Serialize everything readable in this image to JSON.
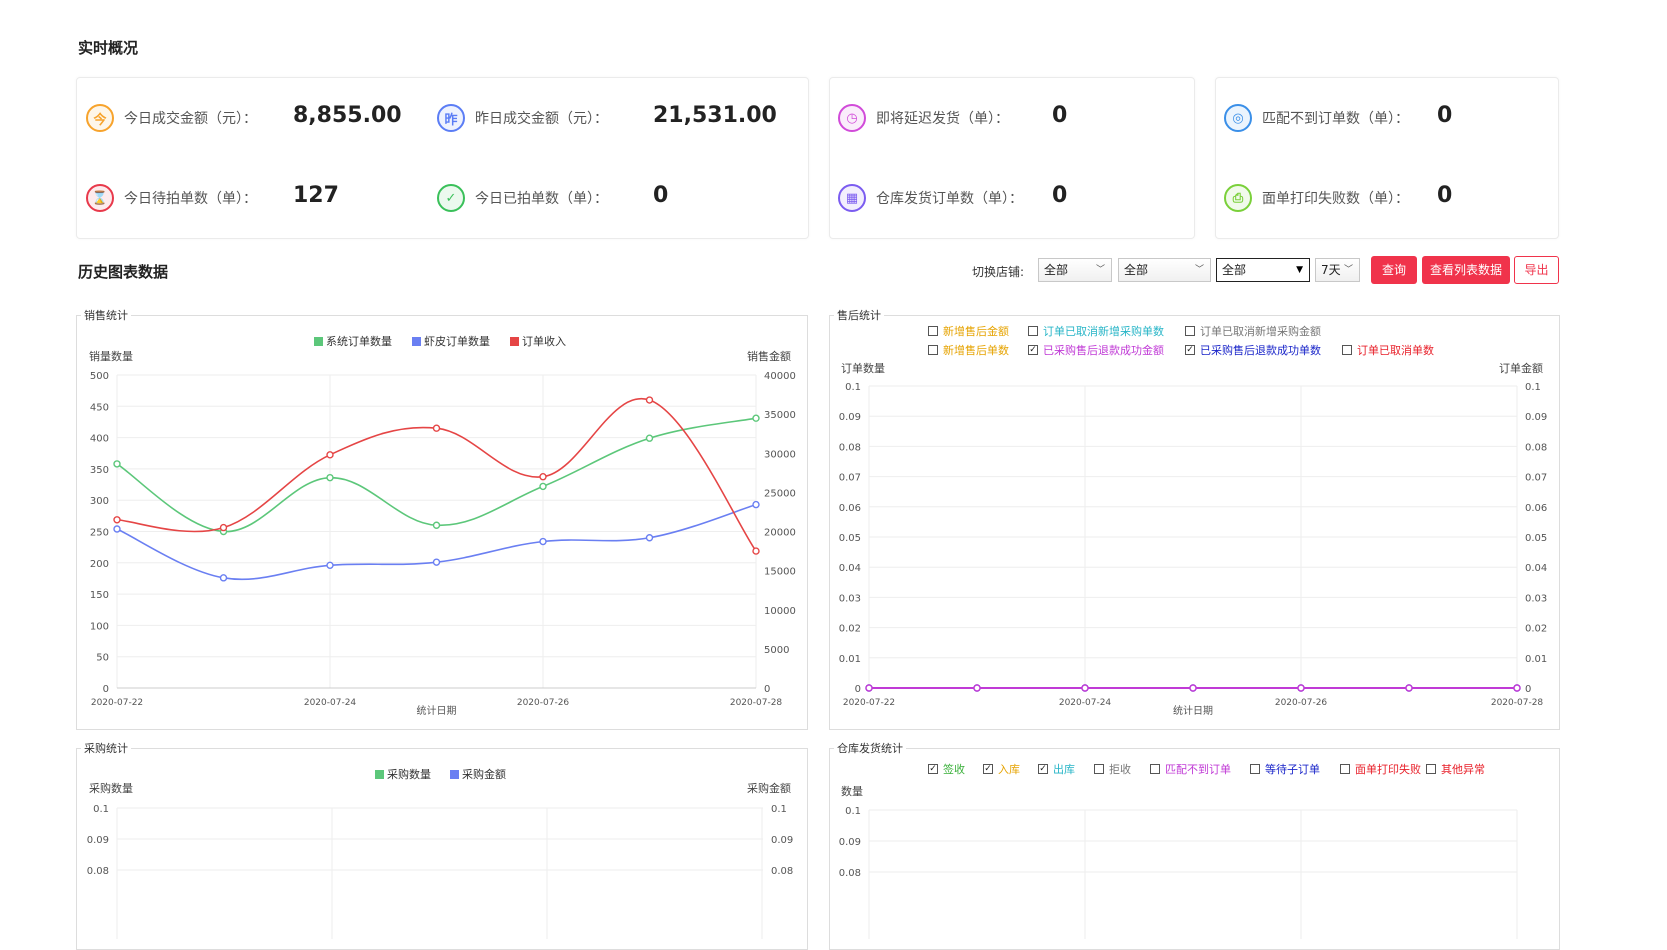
{
  "realtime": {
    "title": "实时概况",
    "stats": [
      {
        "label": "今日成交金额（元）：",
        "value": "8,855.00",
        "icon": "今"
      },
      {
        "label": "昨日成交金额（元）：",
        "value": "21,531.00",
        "icon": "昨"
      },
      {
        "label": "今日待拍单数（单）：",
        "value": "127",
        "icon": "⌛"
      },
      {
        "label": "今日已拍单数（单）：",
        "value": "0",
        "icon": "✓"
      },
      {
        "label": "即将延迟发货（单）：",
        "value": "0",
        "icon": "◷"
      },
      {
        "label": "仓库发货订单数（单）：",
        "value": "0",
        "icon": "▦"
      },
      {
        "label": "匹配不到订单数（单）：",
        "value": "0",
        "icon": "◎"
      },
      {
        "label": "面单打印失败数（单）：",
        "value": "0",
        "icon": "⎙"
      }
    ],
    "icon_colors": [
      "#f7a32c",
      "#5b7df5",
      "#e8394b",
      "#3ac05a",
      "#d14bd9",
      "#7b5cf0",
      "#3a8fe8",
      "#7ad03a"
    ]
  },
  "history": {
    "title": "历史图表数据",
    "shop_label": "切换店铺:",
    "selects": [
      "全部",
      "全部",
      "全部",
      "7天"
    ],
    "buttons": {
      "query": "查询",
      "list": "查看列表数据",
      "export": "导出"
    }
  },
  "sales_panel": {
    "title": "销售统计",
    "legend": [
      "系统订单数量",
      "虾皮订单数量",
      "订单收入"
    ],
    "left_axis_label": "销量数量",
    "right_axis_label": "销售金额",
    "x_label": "统计日期"
  },
  "aftersale_panel": {
    "title": "售后统计",
    "checks": [
      {
        "label": "新增售后金额",
        "checked": false,
        "color": "#e6a300"
      },
      {
        "label": "订单已取消新增采购单数",
        "checked": false,
        "color": "#27b5c7"
      },
      {
        "label": "订单已取消新增采购金额",
        "checked": false,
        "color": "#777777"
      },
      {
        "label": "新增售后单数",
        "checked": false,
        "color": "#e6a300"
      },
      {
        "label": "已采购售后退款成功金额",
        "checked": true,
        "color": "#c03ad6"
      },
      {
        "label": "已采购售后退款成功单数",
        "checked": true,
        "color": "#1a25c9"
      },
      {
        "label": "订单已取消单数",
        "checked": false,
        "color": "#e8202a"
      }
    ],
    "left_axis_label": "订单数量",
    "right_axis_label": "订单金额",
    "x_label": "统计日期"
  },
  "purchase_panel": {
    "title": "采购统计",
    "legend": [
      "采购数量",
      "采购金额"
    ],
    "left_axis_label": "采购数量",
    "right_axis_label": "采购金额"
  },
  "warehouse_panel": {
    "title": "仓库发货统计",
    "checks": [
      {
        "label": "签收",
        "checked": true,
        "color": "#3ab03a"
      },
      {
        "label": "入库",
        "checked": true,
        "color": "#e6a300"
      },
      {
        "label": "出库",
        "checked": true,
        "color": "#27b5c7"
      },
      {
        "label": "拒收",
        "checked": false,
        "color": "#777777"
      },
      {
        "label": "匹配不到订单",
        "checked": false,
        "color": "#c03ad6"
      },
      {
        "label": "等待子订单",
        "checked": false,
        "color": "#1a25c9"
      },
      {
        "label": "面单打印失败",
        "checked": false,
        "color": "#e8202a"
      },
      {
        "label": "其他异常",
        "checked": false,
        "color": "#e8202a"
      }
    ],
    "left_axis_label": "数量"
  },
  "chart_data": [
    {
      "type": "line",
      "title": "销售统计",
      "xlabel": "统计日期",
      "ylabel": "销量数量",
      "y2label": "销售金额",
      "x": [
        "2020-07-22",
        "2020-07-23",
        "2020-07-24",
        "2020-07-25",
        "2020-07-26",
        "2020-07-27",
        "2020-07-28"
      ],
      "x_tick_labels": [
        "2020-07-22",
        "2020-07-24",
        "2020-07-26",
        "2020-07-28"
      ],
      "ylim": [
        0,
        500
      ],
      "y_ticks": [
        0,
        50,
        100,
        150,
        200,
        250,
        300,
        350,
        400,
        450,
        500
      ],
      "y2lim": [
        0,
        40000
      ],
      "y2_ticks": [
        0,
        5000,
        10000,
        15000,
        20000,
        25000,
        30000,
        35000,
        40000
      ],
      "legend_position": "top-center",
      "grid": true,
      "series": [
        {
          "name": "系统订单数量",
          "axis": "left",
          "color": "#5cc77a",
          "values": [
            358,
            250,
            336,
            260,
            322,
            399,
            431
          ]
        },
        {
          "name": "虾皮订单数量",
          "axis": "left",
          "color": "#6a7ff2",
          "values": [
            254,
            176,
            196,
            201,
            234,
            240,
            293
          ]
        },
        {
          "name": "订单收入",
          "axis": "right",
          "color": "#e54545",
          "values": [
            21500,
            20500,
            29800,
            33200,
            27000,
            36800,
            17500
          ]
        }
      ]
    },
    {
      "type": "line",
      "title": "售后统计",
      "xlabel": "统计日期",
      "ylabel": "订单数量",
      "y2label": "订单金额",
      "x": [
        "2020-07-22",
        "2020-07-23",
        "2020-07-24",
        "2020-07-25",
        "2020-07-26",
        "2020-07-27",
        "2020-07-28"
      ],
      "x_tick_labels": [
        "2020-07-22",
        "2020-07-24",
        "2020-07-26",
        "2020-07-28"
      ],
      "ylim": [
        0,
        0.1
      ],
      "y_ticks": [
        0,
        0.01,
        0.02,
        0.03,
        0.04,
        0.05,
        0.06,
        0.07,
        0.08,
        0.09,
        0.1
      ],
      "y2lim": [
        0,
        0.1
      ],
      "y2_ticks": [
        0,
        0.01,
        0.02,
        0.03,
        0.04,
        0.05,
        0.06,
        0.07,
        0.08,
        0.09,
        0.1
      ],
      "grid": true,
      "series": [
        {
          "name": "已采购售后退款成功单数",
          "axis": "left",
          "color": "#1a25c9",
          "values": [
            0,
            0,
            0,
            0,
            0,
            0,
            0
          ]
        },
        {
          "name": "已采购售后退款成功金额",
          "axis": "right",
          "color": "#c03ad6",
          "values": [
            0,
            0,
            0,
            0,
            0,
            0,
            0
          ]
        }
      ]
    },
    {
      "type": "line",
      "title": "采购统计",
      "ylabel": "采购数量",
      "y2label": "采购金额",
      "visible_y_ticks": [
        0.1,
        0.09,
        0.08
      ],
      "visible_y2_ticks": [
        0.1,
        0.09,
        0.08
      ],
      "legend_position": "top-center",
      "grid": true,
      "series": [
        {
          "name": "采购数量",
          "color": "#5cc77a",
          "values": []
        },
        {
          "name": "采购金额",
          "color": "#6a7ff2",
          "values": []
        }
      ]
    },
    {
      "type": "line",
      "title": "仓库发货统计",
      "ylabel": "数量",
      "visible_y_ticks": [
        0.1,
        0.09,
        0.08
      ],
      "grid": true,
      "series": []
    }
  ]
}
